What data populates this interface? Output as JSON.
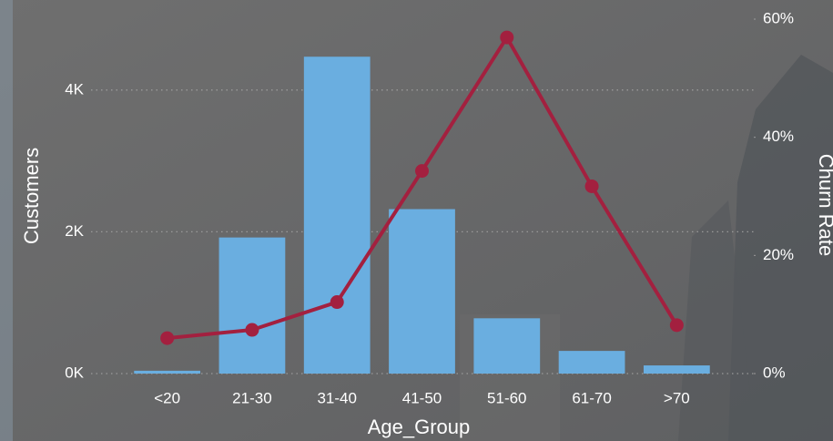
{
  "chart_data": {
    "type": "bar-line",
    "x_label": "Age_Group",
    "y_label": "Customers",
    "y2_label": "Churn Rate",
    "categories": [
      "<20",
      "21-30",
      "31-40",
      "41-50",
      "51-60",
      "61-70",
      ">70"
    ],
    "series": [
      {
        "name": "Customers",
        "type": "bar",
        "color": "#6aaee0",
        "values": [
          40,
          1920,
          4470,
          2320,
          780,
          320,
          115
        ]
      },
      {
        "name": "Churn Rate",
        "type": "line",
        "axis": "y2",
        "color": "#a3203f",
        "values": [
          6.0,
          7.4,
          12.1,
          34.3,
          56.9,
          31.7,
          8.2
        ]
      }
    ],
    "ylim": [
      0,
      5000
    ],
    "yticks": [
      {
        "value": 0,
        "label": "0K"
      },
      {
        "value": 2000,
        "label": "2K"
      },
      {
        "value": 4000,
        "label": "4K"
      }
    ],
    "y2lim": [
      0,
      60
    ],
    "y2ticks": [
      {
        "value": 0,
        "label": "0%"
      },
      {
        "value": 20,
        "label": "20%"
      },
      {
        "value": 40,
        "label": "40%"
      },
      {
        "value": 60,
        "label": "60%"
      }
    ],
    "grid": true
  }
}
